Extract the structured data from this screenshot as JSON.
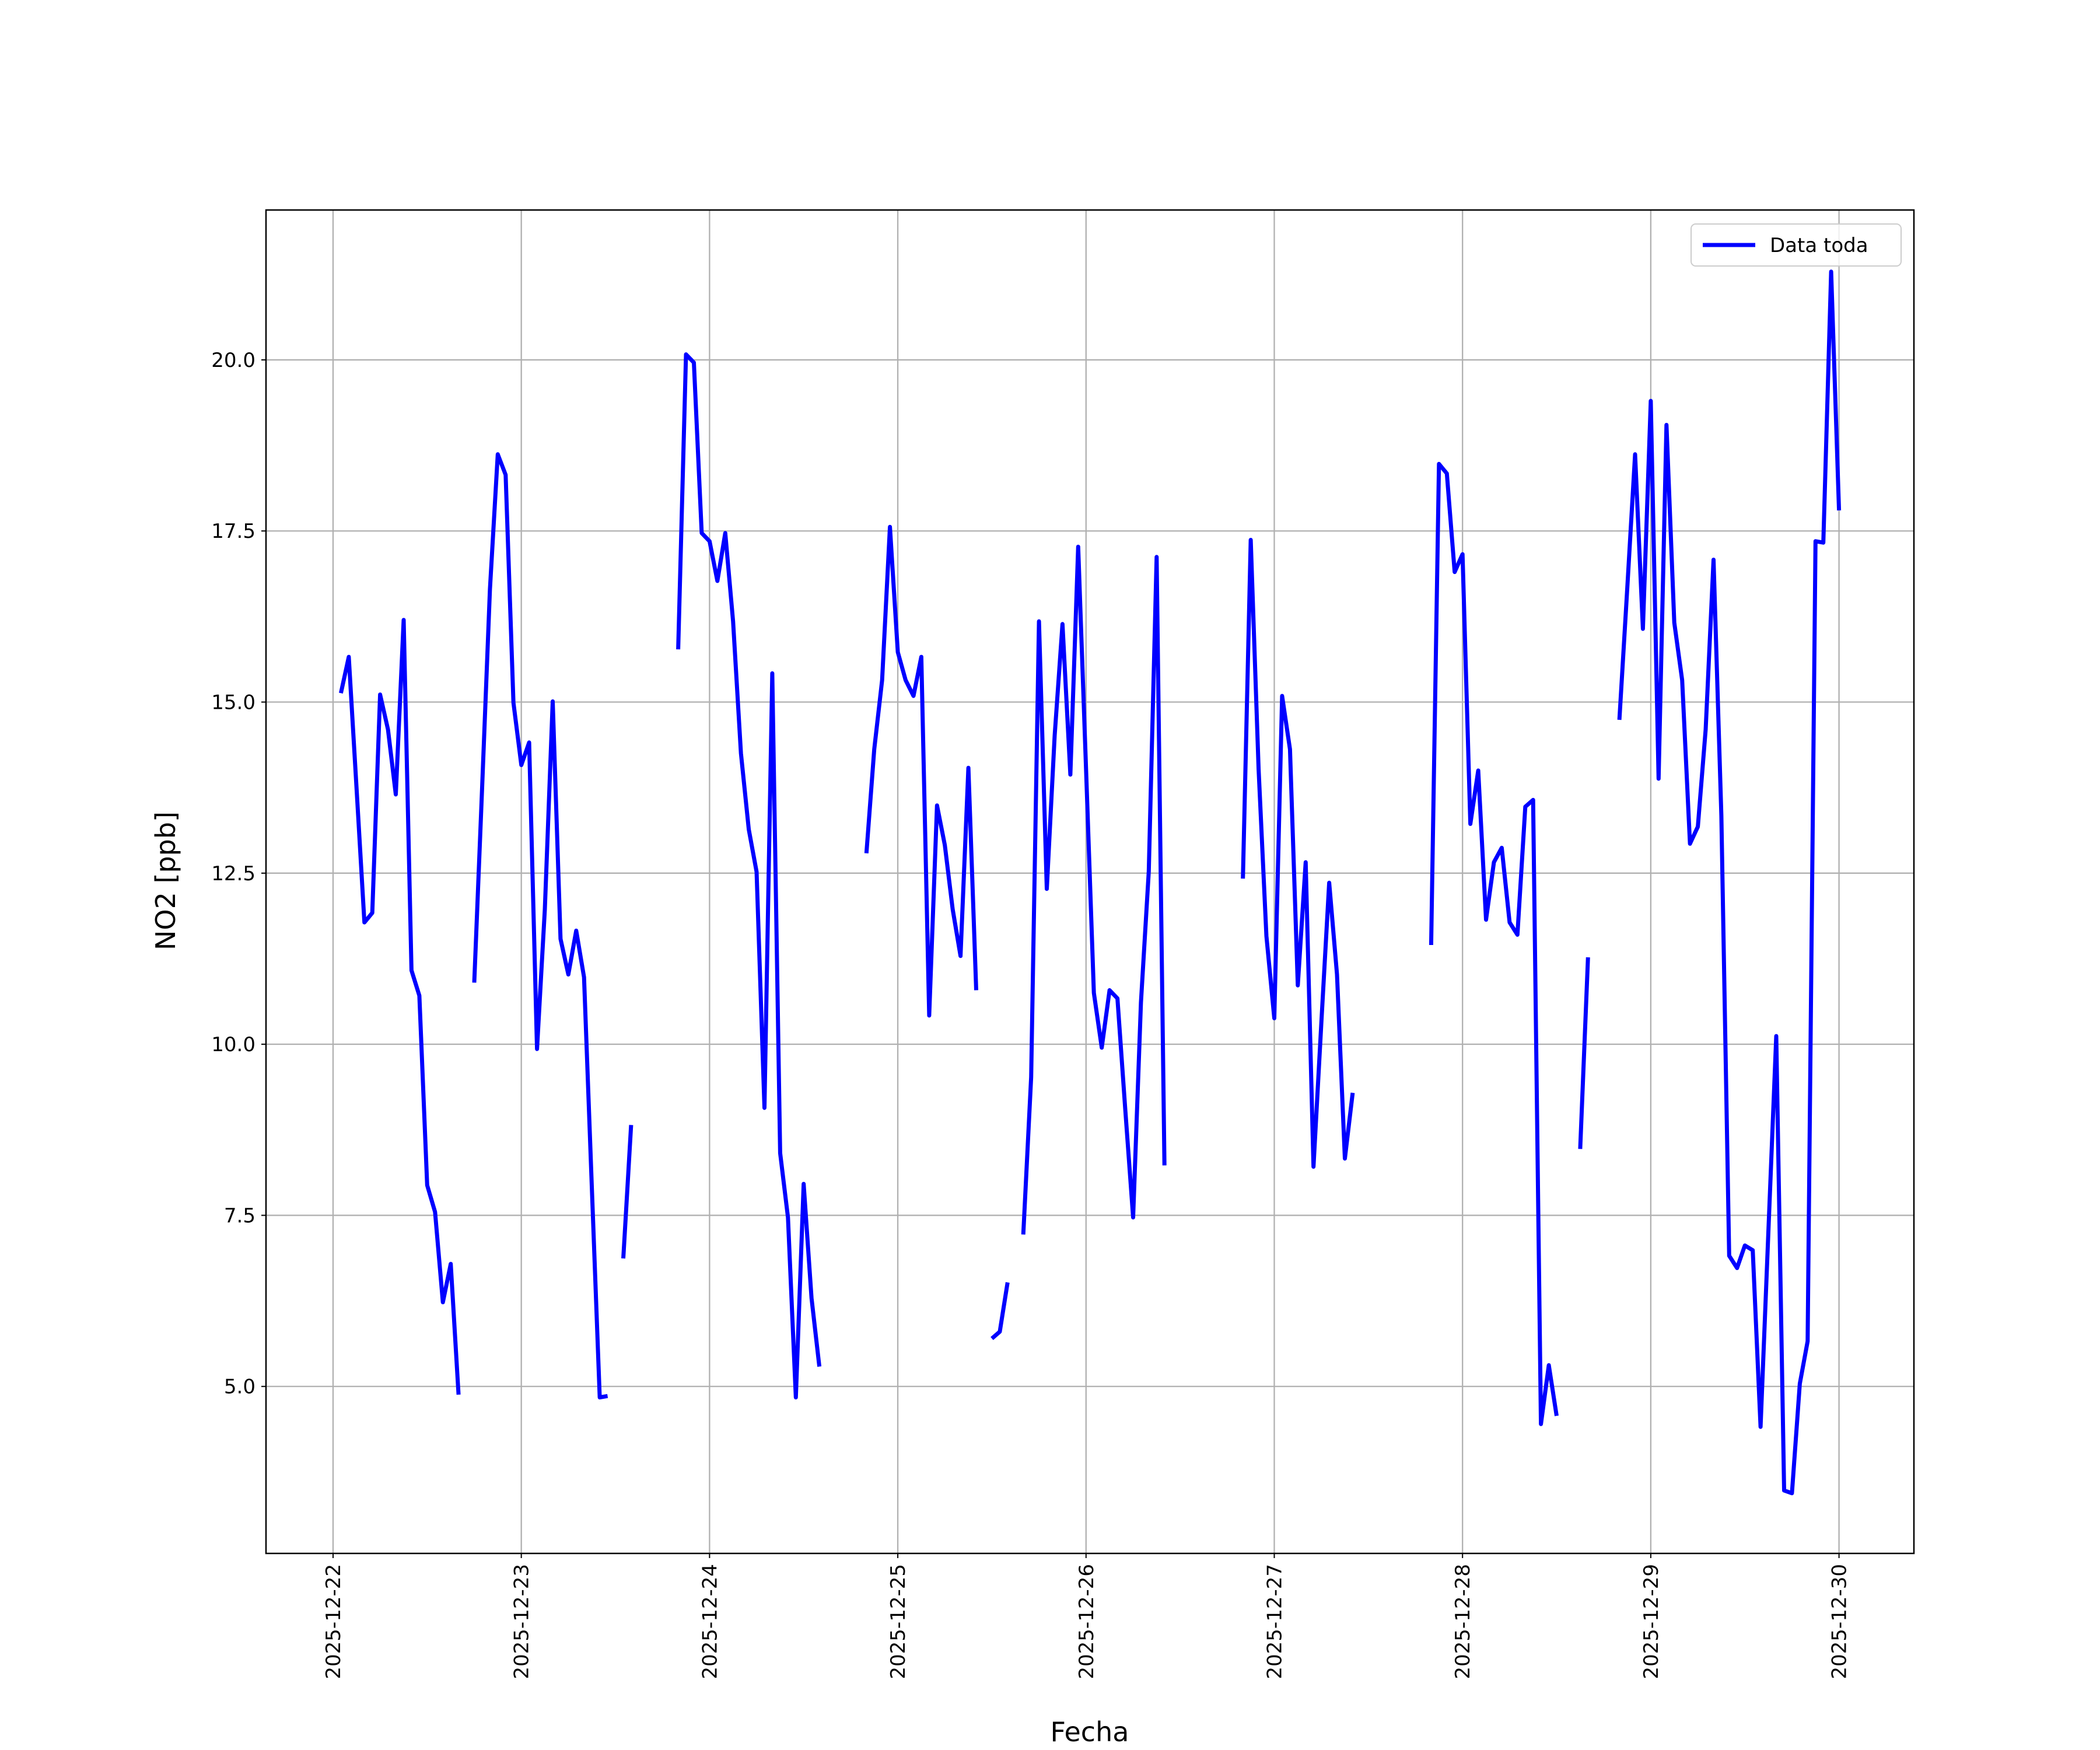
{
  "chart_data": {
    "type": "line",
    "x_label": "Fecha",
    "y_label": "NO2 [ppb]",
    "x": [
      "2025-12-22 01:00",
      "2025-12-22 02:00",
      "2025-12-22 03:00",
      "2025-12-22 04:00",
      "2025-12-22 05:00",
      "2025-12-22 06:00",
      "2025-12-22 07:00",
      "2025-12-22 08:00",
      "2025-12-22 09:00",
      "2025-12-22 10:00",
      "2025-12-22 11:00",
      "2025-12-22 12:00",
      "2025-12-22 13:00",
      "2025-12-22 14:00",
      "2025-12-22 15:00",
      "2025-12-22 16:00",
      "2025-12-22 17:00",
      "2025-12-22 18:00",
      "2025-12-22 19:00",
      "2025-12-22 20:00",
      "2025-12-22 21:00",
      "2025-12-22 22:00",
      "2025-12-22 23:00",
      "2025-12-23 00:00",
      "2025-12-23 01:00",
      "2025-12-23 02:00",
      "2025-12-23 03:00",
      "2025-12-23 04:00",
      "2025-12-23 05:00",
      "2025-12-23 06:00",
      "2025-12-23 07:00",
      "2025-12-23 08:00",
      "2025-12-23 09:00",
      "2025-12-23 10:00",
      "2025-12-23 11:00",
      "2025-12-23 12:00",
      "2025-12-23 13:00",
      "2025-12-23 14:00",
      "2025-12-23 15:00",
      "2025-12-23 16:00",
      "2025-12-23 17:00",
      "2025-12-23 18:00",
      "2025-12-23 19:00",
      "2025-12-23 20:00",
      "2025-12-23 21:00",
      "2025-12-23 22:00",
      "2025-12-23 23:00",
      "2025-12-24 00:00",
      "2025-12-24 01:00",
      "2025-12-24 02:00",
      "2025-12-24 03:00",
      "2025-12-24 04:00",
      "2025-12-24 05:00",
      "2025-12-24 06:00",
      "2025-12-24 07:00",
      "2025-12-24 08:00",
      "2025-12-24 09:00",
      "2025-12-24 10:00",
      "2025-12-24 11:00",
      "2025-12-24 12:00",
      "2025-12-24 13:00",
      "2025-12-24 14:00",
      "2025-12-24 15:00",
      "2025-12-24 16:00",
      "2025-12-24 17:00",
      "2025-12-24 18:00",
      "2025-12-24 19:00",
      "2025-12-24 20:00",
      "2025-12-24 21:00",
      "2025-12-24 22:00",
      "2025-12-24 23:00",
      "2025-12-25 00:00",
      "2025-12-25 01:00",
      "2025-12-25 02:00",
      "2025-12-25 03:00",
      "2025-12-25 04:00",
      "2025-12-25 05:00",
      "2025-12-25 06:00",
      "2025-12-25 07:00",
      "2025-12-25 08:00",
      "2025-12-25 09:00",
      "2025-12-25 10:00",
      "2025-12-25 11:00",
      "2025-12-25 12:00",
      "2025-12-25 13:00",
      "2025-12-25 14:00",
      "2025-12-25 15:00",
      "2025-12-25 16:00",
      "2025-12-25 17:00",
      "2025-12-25 18:00",
      "2025-12-25 19:00",
      "2025-12-25 20:00",
      "2025-12-25 21:00",
      "2025-12-25 22:00",
      "2025-12-25 23:00",
      "2025-12-26 00:00",
      "2025-12-26 01:00",
      "2025-12-26 02:00",
      "2025-12-26 03:00",
      "2025-12-26 04:00",
      "2025-12-26 05:00",
      "2025-12-26 06:00",
      "2025-12-26 07:00",
      "2025-12-26 08:00",
      "2025-12-26 09:00",
      "2025-12-26 10:00",
      "2025-12-26 11:00",
      "2025-12-26 12:00",
      "2025-12-26 13:00",
      "2025-12-26 14:00",
      "2025-12-26 15:00",
      "2025-12-26 16:00",
      "2025-12-26 17:00",
      "2025-12-26 18:00",
      "2025-12-26 19:00",
      "2025-12-26 20:00",
      "2025-12-26 21:00",
      "2025-12-26 22:00",
      "2025-12-26 23:00",
      "2025-12-27 00:00",
      "2025-12-27 01:00",
      "2025-12-27 02:00",
      "2025-12-27 03:00",
      "2025-12-27 04:00",
      "2025-12-27 05:00",
      "2025-12-27 06:00",
      "2025-12-27 07:00",
      "2025-12-27 08:00",
      "2025-12-27 09:00",
      "2025-12-27 10:00",
      "2025-12-27 11:00",
      "2025-12-27 12:00",
      "2025-12-27 13:00",
      "2025-12-27 14:00",
      "2025-12-27 15:00",
      "2025-12-27 16:00",
      "2025-12-27 17:00",
      "2025-12-27 18:00",
      "2025-12-27 19:00",
      "2025-12-27 20:00",
      "2025-12-27 21:00",
      "2025-12-27 22:00",
      "2025-12-27 23:00",
      "2025-12-28 00:00",
      "2025-12-28 01:00",
      "2025-12-28 02:00",
      "2025-12-28 03:00",
      "2025-12-28 04:00",
      "2025-12-28 05:00",
      "2025-12-28 06:00",
      "2025-12-28 07:00",
      "2025-12-28 08:00",
      "2025-12-28 09:00",
      "2025-12-28 10:00",
      "2025-12-28 11:00",
      "2025-12-28 12:00",
      "2025-12-28 13:00",
      "2025-12-28 14:00",
      "2025-12-28 15:00",
      "2025-12-28 16:00",
      "2025-12-28 17:00",
      "2025-12-28 18:00",
      "2025-12-28 19:00",
      "2025-12-28 20:00",
      "2025-12-28 21:00",
      "2025-12-28 22:00",
      "2025-12-28 23:00",
      "2025-12-29 00:00",
      "2025-12-29 01:00",
      "2025-12-29 02:00",
      "2025-12-29 03:00",
      "2025-12-29 04:00",
      "2025-12-29 05:00",
      "2025-12-29 06:00",
      "2025-12-29 07:00",
      "2025-12-29 08:00",
      "2025-12-29 09:00",
      "2025-12-29 10:00",
      "2025-12-29 11:00",
      "2025-12-29 12:00",
      "2025-12-29 13:00",
      "2025-12-29 14:00",
      "2025-12-29 15:00",
      "2025-12-29 16:00",
      "2025-12-29 17:00",
      "2025-12-29 18:00",
      "2025-12-29 19:00",
      "2025-12-29 20:00",
      "2025-12-29 21:00",
      "2025-12-29 22:00",
      "2025-12-29 23:00",
      "2025-12-30 00:00"
    ],
    "series": [
      {
        "name": "Data toda",
        "color": "#0000ff",
        "values": [
          15.13,
          15.66,
          13.73,
          11.78,
          11.92,
          15.11,
          14.6,
          13.65,
          16.2,
          11.08,
          10.71,
          7.94,
          7.55,
          6.23,
          6.79,
          4.88,
          null,
          10.9,
          13.73,
          16.65,
          18.62,
          18.32,
          14.99,
          14.08,
          14.41,
          9.93,
          11.97,
          15.01,
          11.54,
          11.02,
          11.66,
          10.98,
          7.88,
          4.84,
          4.86,
          null,
          6.87,
          8.82,
          null,
          null,
          null,
          null,
          null,
          15.77,
          20.08,
          19.96,
          17.47,
          17.35,
          16.77,
          17.47,
          16.18,
          14.25,
          13.14,
          12.52,
          9.07,
          15.42,
          8.41,
          7.47,
          4.84,
          7.96,
          6.29,
          5.29,
          null,
          null,
          null,
          null,
          null,
          12.79,
          14.31,
          15.32,
          17.56,
          15.73,
          15.32,
          15.09,
          15.66,
          10.42,
          13.49,
          12.91,
          11.97,
          11.29,
          14.04,
          10.79,
          null,
          5.7,
          5.8,
          6.52,
          null,
          7.22,
          9.52,
          16.18,
          12.27,
          14.51,
          16.14,
          13.94,
          17.27,
          14.02,
          10.75,
          9.95,
          10.79,
          10.67,
          9.05,
          7.47,
          10.61,
          12.52,
          17.12,
          8.23,
          null,
          null,
          null,
          null,
          null,
          null,
          null,
          null,
          null,
          12.42,
          17.37,
          14.02,
          11.58,
          10.38,
          15.09,
          14.31,
          10.86,
          12.66,
          8.21,
          10.32,
          12.36,
          11.02,
          8.33,
          9.29,
          null,
          null,
          null,
          null,
          null,
          null,
          null,
          null,
          null,
          11.45,
          18.48,
          18.34,
          16.9,
          17.16,
          13.22,
          14.0,
          11.82,
          12.66,
          12.87,
          11.78,
          11.6,
          13.47,
          13.57,
          4.45,
          5.31,
          4.57,
          null,
          null,
          8.47,
          11.27,
          null,
          null,
          null,
          14.74,
          16.65,
          18.62,
          16.07,
          19.4,
          13.88,
          19.05,
          16.16,
          15.32,
          12.93,
          13.18,
          14.6,
          17.08,
          13.34,
          6.91,
          6.73,
          7.06,
          6.99,
          4.41,
          7.28,
          10.12,
          3.48,
          3.44,
          5.04,
          5.66,
          17.35,
          17.33,
          21.29,
          17.8
        ]
      }
    ],
    "xlim": [
      "2025-12-21 15:27",
      "2025-12-30 09:33"
    ],
    "xticks": [
      "2025-12-22",
      "2025-12-23",
      "2025-12-24",
      "2025-12-25",
      "2025-12-26",
      "2025-12-27",
      "2025-12-28",
      "2025-12-29",
      "2025-12-30"
    ],
    "ylim": [
      2.56,
      22.19
    ],
    "yticks": [
      {
        "value": 5,
        "label": "5.0"
      },
      7.5,
      {
        "value": 10,
        "label": "10.0"
      },
      12.5,
      {
        "value": 15,
        "label": "15.0"
      },
      17.5,
      {
        "value": 20,
        "label": "20.0"
      }
    ],
    "grid": true,
    "legend": "upper right"
  }
}
